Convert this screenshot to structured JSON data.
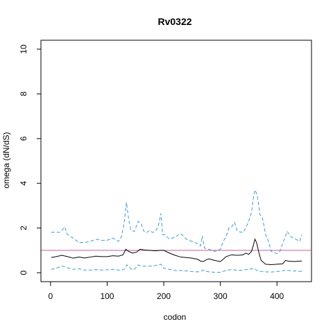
{
  "chart_data": {
    "type": "line",
    "title": "Rv0322",
    "xlabel": "codon",
    "ylabel": "omega (dN/dS)",
    "xlim": [
      -17,
      461
    ],
    "ylim": [
      -0.4,
      10.4
    ],
    "xticks": [
      0,
      100,
      200,
      300,
      400
    ],
    "yticks": [
      0,
      2,
      4,
      6,
      8,
      10
    ],
    "grid": false,
    "reference_line": {
      "y": 1,
      "color": "#c75b9b"
    },
    "series": [
      {
        "role": "estimate",
        "color": "#000000",
        "style": "solid",
        "x": [
          1,
          10,
          20,
          30,
          40,
          50,
          60,
          70,
          80,
          90,
          100,
          110,
          120,
          128,
          133,
          138,
          145,
          152,
          158,
          165,
          175,
          185,
          195,
          200,
          210,
          220,
          230,
          240,
          250,
          260,
          265,
          270,
          275,
          280,
          290,
          300,
          305,
          310,
          320,
          330,
          340,
          345,
          350,
          355,
          358,
          361,
          364,
          368,
          372,
          380,
          390,
          400,
          410,
          415,
          420,
          430,
          440,
          444
        ],
        "y": [
          0.68,
          0.72,
          0.78,
          0.72,
          0.65,
          0.7,
          0.66,
          0.7,
          0.74,
          0.72,
          0.72,
          0.76,
          0.74,
          0.8,
          1.05,
          0.95,
          0.88,
          0.92,
          1.05,
          1.02,
          1.0,
          0.98,
          1.0,
          1.0,
          0.88,
          0.78,
          0.7,
          0.68,
          0.65,
          0.6,
          0.52,
          0.5,
          0.58,
          0.62,
          0.55,
          0.5,
          0.6,
          0.72,
          0.8,
          0.78,
          0.8,
          0.88,
          0.82,
          0.95,
          1.2,
          1.5,
          1.35,
          0.9,
          0.55,
          0.38,
          0.36,
          0.38,
          0.4,
          0.55,
          0.52,
          0.5,
          0.52,
          0.52
        ]
      },
      {
        "role": "upper bound",
        "color": "#3b9bd6",
        "style": "dashed",
        "x": [
          1,
          10,
          15,
          20,
          25,
          30,
          40,
          50,
          60,
          70,
          80,
          90,
          100,
          110,
          120,
          125,
          130,
          134,
          138,
          142,
          148,
          155,
          160,
          165,
          170,
          175,
          180,
          185,
          190,
          195,
          198,
          202,
          210,
          220,
          230,
          240,
          250,
          260,
          265,
          268,
          272,
          280,
          290,
          300,
          305,
          310,
          315,
          320,
          325,
          330,
          340,
          345,
          350,
          355,
          358,
          361,
          365,
          370,
          374,
          380,
          385,
          390,
          400,
          405,
          410,
          418,
          425,
          430,
          440,
          444
        ],
        "y": [
          1.8,
          1.82,
          1.8,
          1.9,
          2.05,
          1.7,
          1.55,
          1.35,
          1.35,
          1.4,
          1.5,
          1.45,
          1.45,
          1.55,
          1.4,
          1.6,
          2.2,
          3.15,
          2.4,
          1.9,
          1.85,
          2.3,
          2.2,
          1.85,
          1.8,
          1.9,
          1.8,
          1.85,
          2.05,
          2.65,
          1.7,
          1.7,
          1.5,
          1.6,
          1.75,
          1.5,
          1.4,
          1.3,
          1.2,
          1.65,
          1.1,
          1.05,
          0.95,
          1.05,
          1.4,
          1.6,
          2.0,
          2.05,
          2.25,
          1.85,
          1.8,
          2.0,
          2.3,
          2.7,
          3.3,
          3.7,
          3.5,
          2.6,
          2.5,
          1.7,
          1.4,
          0.95,
          0.85,
          0.95,
          1.3,
          1.85,
          1.6,
          1.55,
          1.4,
          1.7
        ]
      },
      {
        "role": "lower bound",
        "color": "#3b9bd6",
        "style": "dashed",
        "x": [
          1,
          10,
          20,
          30,
          40,
          50,
          60,
          70,
          80,
          90,
          100,
          110,
          120,
          125,
          130,
          135,
          140,
          145,
          150,
          155,
          160,
          170,
          180,
          190,
          195,
          200,
          210,
          220,
          230,
          240,
          250,
          260,
          265,
          270,
          275,
          280,
          290,
          300,
          305,
          310,
          320,
          330,
          340,
          350,
          360,
          362,
          366,
          372,
          380,
          390,
          400,
          410,
          415,
          420,
          430,
          440,
          444
        ],
        "y": [
          0.15,
          0.2,
          0.3,
          0.22,
          0.15,
          0.18,
          0.12,
          0.12,
          0.14,
          0.12,
          0.13,
          0.15,
          0.12,
          0.1,
          0.15,
          0.35,
          0.22,
          0.12,
          0.2,
          0.35,
          0.3,
          0.3,
          0.3,
          0.35,
          0.38,
          0.2,
          0.15,
          0.1,
          0.1,
          0.08,
          0.05,
          0.04,
          0.05,
          0.12,
          0.06,
          0.04,
          0.02,
          0.02,
          0.06,
          0.1,
          0.15,
          0.1,
          0.12,
          0.15,
          0.2,
          0.15,
          0.08,
          0.05,
          0.04,
          0.03,
          0.05,
          0.08,
          0.12,
          0.1,
          0.08,
          0.06,
          0.05
        ]
      }
    ]
  }
}
